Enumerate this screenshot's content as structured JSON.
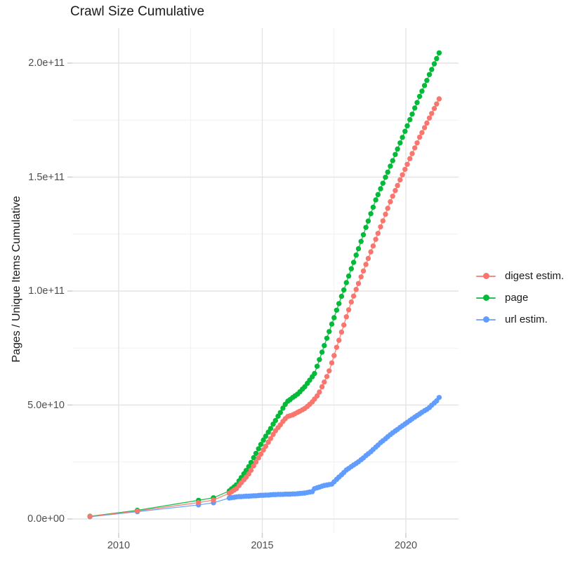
{
  "figure": {
    "title": "Crawl Size Cumulative"
  },
  "chart_data": {
    "type": "line",
    "marker": "point",
    "title": "Crawl Size Cumulative",
    "xlabel": "",
    "ylabel": "Pages / Unique Items Cumulative",
    "legend_position": "right",
    "grid": true,
    "xlim": [
      2008.4,
      2021.9
    ],
    "ylim": [
      -5200000000.0,
      215400000000.0
    ],
    "x_tick_values": [
      2010,
      2015,
      2020
    ],
    "x_tick_labels": [
      "2010",
      "2015",
      "2020"
    ],
    "x_minor_tick_values": [
      2012.5,
      2017.5
    ],
    "y_tick_values_e9": [
      0,
      50,
      100,
      150,
      200
    ],
    "y_tick_labels": [
      "0.0e+00",
      "5.0e+10",
      "1.0e+11",
      "1.5e+11",
      "2.0e+11"
    ],
    "y_minor_tick_values_e9": [
      25,
      75,
      125,
      175
    ],
    "value_unit": "1e9 pages",
    "x_years": [
      2009.0,
      2010.65,
      2012.78,
      2013.3,
      2013.85,
      2013.93,
      2014.02,
      2014.1,
      2014.19,
      2014.27,
      2014.36,
      2014.44,
      2014.53,
      2014.61,
      2014.7,
      2014.78,
      2014.87,
      2014.95,
      2015.04,
      2015.12,
      2015.21,
      2015.29,
      2015.38,
      2015.46,
      2015.55,
      2015.63,
      2015.72,
      2015.8,
      2015.89,
      2015.97,
      2016.06,
      2016.14,
      2016.23,
      2016.31,
      2016.4,
      2016.48,
      2016.57,
      2016.65,
      2016.74,
      2016.82,
      2016.91,
      2016.99,
      2017.08,
      2017.16,
      2017.25,
      2017.33,
      2017.42,
      2017.5,
      2017.59,
      2017.67,
      2017.76,
      2017.84,
      2017.93,
      2018.01,
      2018.1,
      2018.18,
      2018.27,
      2018.35,
      2018.44,
      2018.52,
      2018.61,
      2018.69,
      2018.78,
      2018.86,
      2018.95,
      2019.03,
      2019.12,
      2019.2,
      2019.29,
      2019.37,
      2019.46,
      2019.54,
      2019.63,
      2019.71,
      2019.8,
      2019.88,
      2019.97,
      2020.05,
      2020.14,
      2020.22,
      2020.31,
      2020.39,
      2020.48,
      2020.56,
      2020.65,
      2020.73,
      2020.82,
      2020.9,
      2020.99,
      2021.07,
      2021.16
    ],
    "series": [
      {
        "name": "digest estim.",
        "color": "#F8766D",
        "values_e9": [
          1.1,
          3.5,
          7.2,
          8.3,
          11.3,
          11.9,
          12.7,
          13.3,
          14.7,
          15.9,
          17.2,
          18.4,
          19.8,
          21.4,
          23.3,
          25.0,
          26.8,
          28.5,
          30.3,
          31.9,
          33.7,
          35.3,
          37.1,
          38.7,
          40.1,
          41.3,
          42.8,
          44.0,
          45.0,
          45.3,
          45.7,
          46.2,
          46.8,
          47.3,
          47.9,
          48.5,
          49.4,
          50.3,
          51.4,
          52.6,
          54.0,
          55.7,
          58.0,
          60.1,
          62.5,
          65.0,
          68.5,
          71.7,
          75.3,
          78.4,
          82.0,
          85.1,
          88.7,
          91.8,
          95.2,
          97.8,
          100.7,
          103.3,
          106.2,
          108.8,
          111.7,
          114.3,
          117.2,
          119.8,
          122.7,
          125.3,
          128.2,
          130.8,
          133.7,
          136.3,
          139.2,
          141.6,
          144.1,
          146.3,
          148.8,
          151.0,
          153.4,
          155.6,
          158.1,
          160.3,
          162.8,
          165.0,
          167.5,
          169.5,
          171.7,
          173.7,
          175.9,
          177.9,
          180.1,
          182.1,
          184.3
        ]
      },
      {
        "name": "page",
        "color": "#00BA38",
        "values_e9": [
          1.2,
          3.8,
          8.2,
          9.3,
          12.3,
          13.2,
          14.1,
          15.0,
          16.7,
          18.2,
          19.8,
          21.3,
          23.0,
          24.8,
          26.9,
          28.8,
          30.8,
          32.7,
          34.6,
          36.3,
          38.1,
          39.7,
          41.6,
          43.2,
          45.1,
          46.7,
          48.6,
          50.3,
          51.7,
          52.4,
          53.3,
          54.0,
          54.8,
          55.8,
          57.0,
          58.0,
          59.5,
          60.9,
          62.4,
          63.8,
          67.0,
          69.9,
          73.2,
          76.1,
          79.3,
          82.2,
          85.5,
          88.3,
          91.6,
          94.5,
          97.7,
          100.5,
          103.7,
          106.6,
          109.8,
          112.6,
          115.8,
          118.6,
          121.8,
          124.7,
          127.9,
          130.7,
          133.9,
          136.8,
          140.0,
          142.3,
          144.9,
          147.3,
          149.9,
          152.2,
          154.8,
          157.2,
          159.9,
          162.3,
          165.0,
          167.4,
          170.1,
          172.5,
          175.2,
          177.6,
          180.3,
          182.7,
          185.4,
          187.7,
          190.2,
          192.4,
          195.0,
          197.2,
          199.7,
          202.0,
          204.5
        ]
      },
      {
        "name": "url estim.",
        "color": "#619CFF",
        "values_e9": [
          1.0,
          3.2,
          6.2,
          7.1,
          9.2,
          9.4,
          9.5,
          9.7,
          9.8,
          9.8,
          9.9,
          10.0,
          10.0,
          10.1,
          10.2,
          10.2,
          10.3,
          10.4,
          10.4,
          10.5,
          10.5,
          10.6,
          10.7,
          10.7,
          10.8,
          10.8,
          10.8,
          10.9,
          10.9,
          10.9,
          11.0,
          11.0,
          11.1,
          11.2,
          11.3,
          11.4,
          11.6,
          11.8,
          12.0,
          13.3,
          13.7,
          14.0,
          14.4,
          14.7,
          14.9,
          15.1,
          15.3,
          16.3,
          17.4,
          18.4,
          19.4,
          20.4,
          21.5,
          22.2,
          23.0,
          23.7,
          24.4,
          25.1,
          26.0,
          26.8,
          27.8,
          28.6,
          29.5,
          30.5,
          31.5,
          32.4,
          33.5,
          34.3,
          35.2,
          36.1,
          37.0,
          37.8,
          38.6,
          39.3,
          40.2,
          40.9,
          41.7,
          42.4,
          43.2,
          43.9,
          44.7,
          45.4,
          46.1,
          46.8,
          47.5,
          48.1,
          48.9,
          49.9,
          50.9,
          51.8,
          53.3
        ]
      }
    ],
    "colors": {
      "grid_major": "#e4e4e4",
      "grid_minor": "#f1f1f1",
      "tick_mark": "#cfcfcf",
      "tick_text": "#4d4d4d",
      "title_text": "#1a1a1a"
    }
  }
}
